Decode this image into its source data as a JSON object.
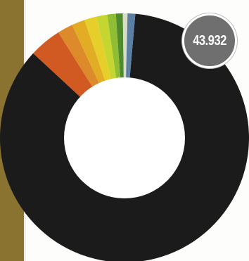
{
  "total_label": "43.932",
  "colors": {
    "background": "#fdfdfb",
    "side_band": "#8a7330",
    "badge": "#6f6f6f"
  },
  "chart_data": {
    "type": "pie",
    "variant": "donut",
    "title": "",
    "total": "43.932",
    "slices": [
      {
        "value": 85.5,
        "color": "#1b1b1b"
      },
      {
        "value": 4.2,
        "color": "#d05a22"
      },
      {
        "value": 2.0,
        "color": "#dd8a2a"
      },
      {
        "value": 1.7,
        "color": "#e2ad25"
      },
      {
        "value": 1.6,
        "color": "#e6cf2a"
      },
      {
        "value": 1.4,
        "color": "#c6d630"
      },
      {
        "value": 1.1,
        "color": "#8fbd34"
      },
      {
        "value": 0.9,
        "color": "#4f8a2e"
      },
      {
        "value": 0.6,
        "color": "#d8dcc8"
      },
      {
        "value": 1.0,
        "color": "#5b7fa2"
      }
    ]
  }
}
